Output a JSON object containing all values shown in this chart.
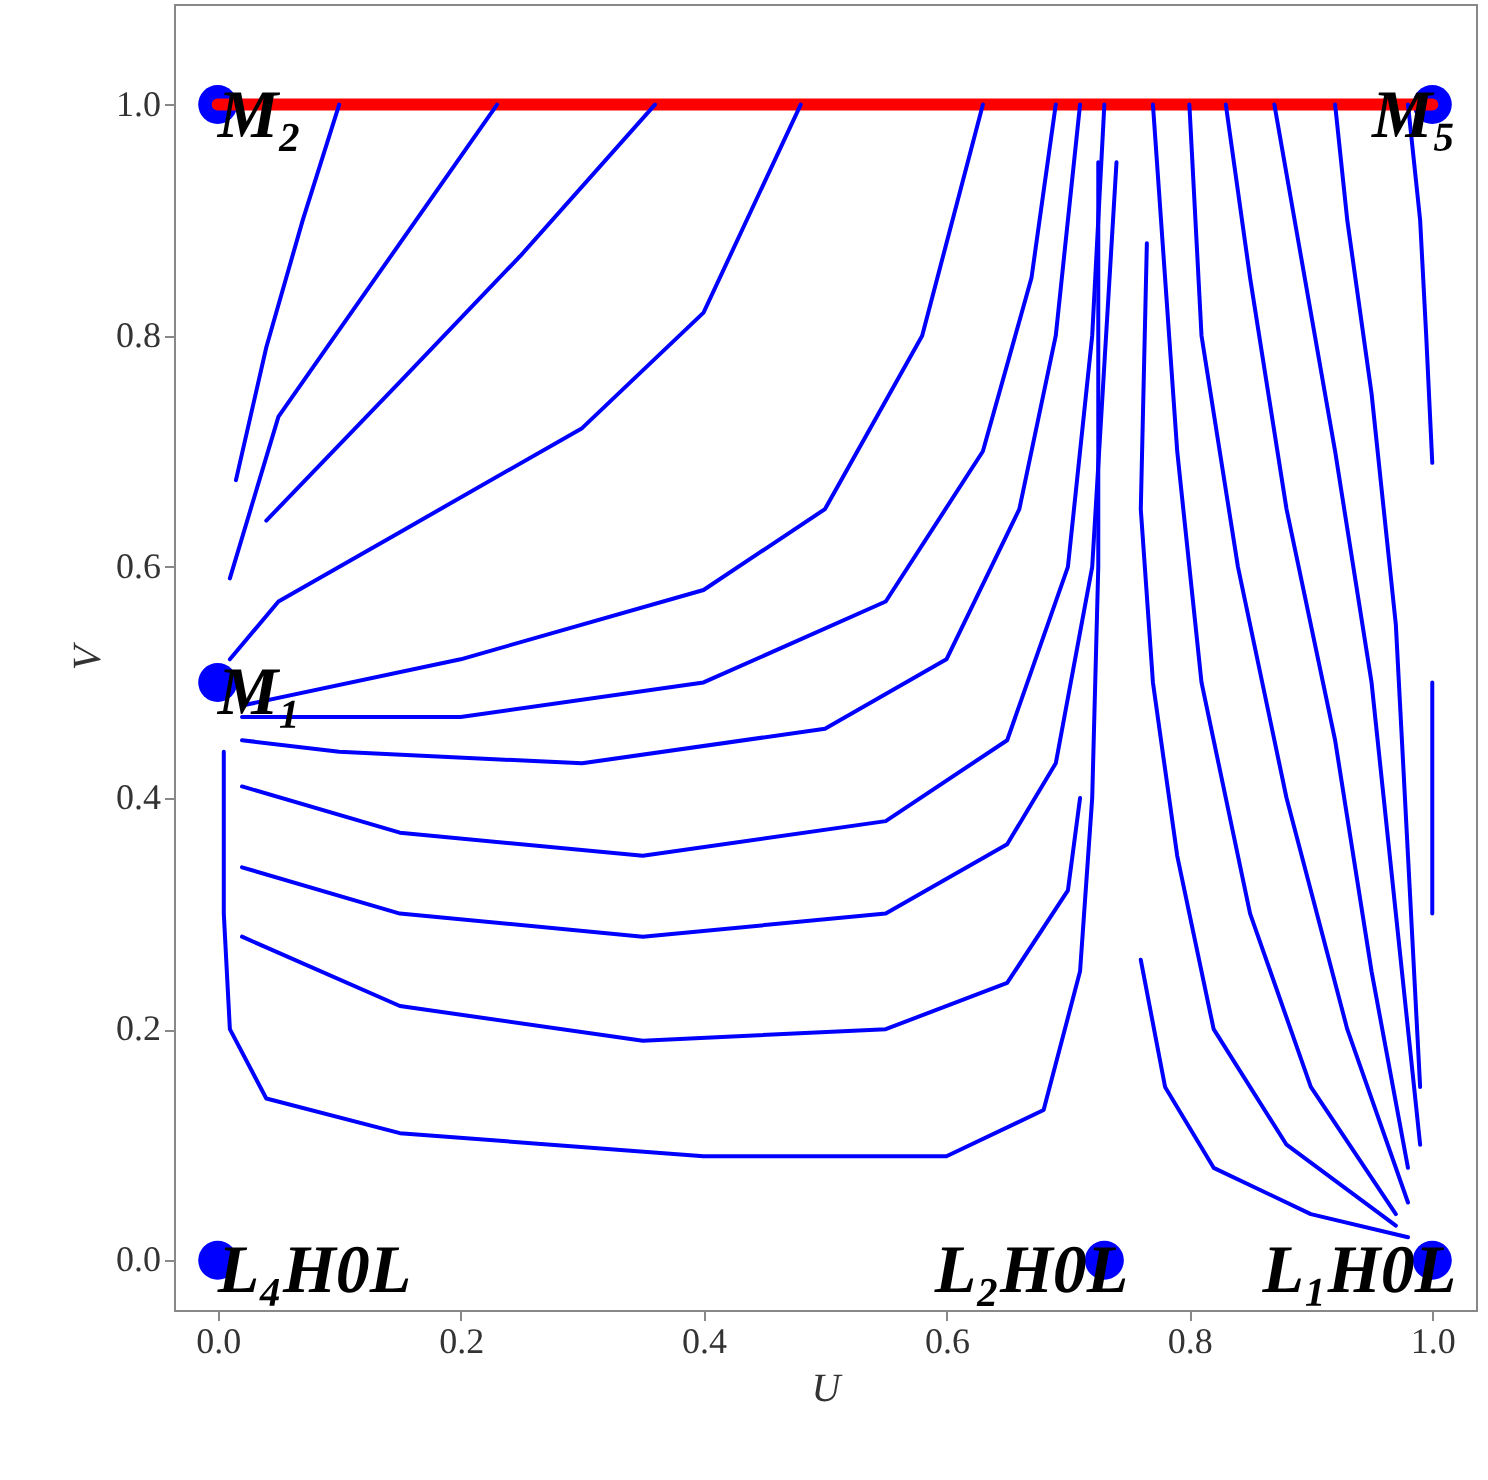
{
  "chart_data": {
    "type": "line",
    "xlabel": "U",
    "ylabel": "V",
    "xlim": [
      -0.036,
      1.036
    ],
    "ylim": [
      -0.043,
      1.087
    ],
    "xticks": [
      {
        "value": 0,
        "label": "0.0"
      },
      {
        "value": 0.2,
        "label": "0.2"
      },
      {
        "value": 0.4,
        "label": "0.4"
      },
      {
        "value": 0.6,
        "label": "0.6"
      },
      {
        "value": 0.8,
        "label": "0.8"
      },
      {
        "value": 1,
        "label": "1.0"
      }
    ],
    "yticks": [
      {
        "value": 0,
        "label": "0.0"
      },
      {
        "value": 0.2,
        "label": "0.2"
      },
      {
        "value": 0.4,
        "label": "0.4"
      },
      {
        "value": 0.6,
        "label": "0.6"
      },
      {
        "value": 0.8,
        "label": "0.8"
      },
      {
        "value": 1,
        "label": "1.0"
      }
    ],
    "grid": false,
    "line_style": "solid",
    "series": [
      {
        "color": "#ff0000",
        "x": [
          0,
          1
        ],
        "values": [
          1,
          1
        ]
      },
      {
        "color": "#0000ff",
        "x": [
          0.015,
          0.04,
          0.07,
          0.1
        ],
        "values": [
          0.675,
          0.79,
          0.9,
          1.0
        ]
      },
      {
        "color": "#0000ff",
        "x": [
          0.01,
          0.05,
          0.13,
          0.23
        ],
        "values": [
          0.59,
          0.73,
          0.85,
          1.0
        ]
      },
      {
        "color": "#0000ff",
        "x": [
          0.04,
          0.15,
          0.25,
          0.36
        ],
        "values": [
          0.64,
          0.76,
          0.87,
          1.0
        ]
      },
      {
        "color": "#0000ff",
        "x": [
          0.01,
          0.05,
          0.15,
          0.3,
          0.4,
          0.48
        ],
        "values": [
          0.52,
          0.57,
          0.63,
          0.72,
          0.82,
          1.0
        ]
      },
      {
        "color": "#0000ff",
        "x": [
          0.02,
          0.2,
          0.4,
          0.5,
          0.58,
          0.63
        ],
        "values": [
          0.48,
          0.52,
          0.58,
          0.65,
          0.8,
          1.0
        ]
      },
      {
        "color": "#0000ff",
        "x": [
          0.02,
          0.2,
          0.4,
          0.55,
          0.63,
          0.67,
          0.69
        ],
        "values": [
          0.47,
          0.47,
          0.5,
          0.57,
          0.7,
          0.85,
          1.0
        ]
      },
      {
        "color": "#0000ff",
        "x": [
          0.02,
          0.1,
          0.3,
          0.5,
          0.6,
          0.66,
          0.69,
          0.71
        ],
        "values": [
          0.45,
          0.44,
          0.43,
          0.46,
          0.52,
          0.65,
          0.8,
          1.0
        ]
      },
      {
        "color": "#0000ff",
        "x": [
          0.02,
          0.15,
          0.35,
          0.55,
          0.65,
          0.7,
          0.72,
          0.73
        ],
        "values": [
          0.41,
          0.37,
          0.35,
          0.38,
          0.45,
          0.6,
          0.8,
          1.0
        ]
      },
      {
        "color": "#0000ff",
        "x": [
          0.02,
          0.15,
          0.35,
          0.55,
          0.65,
          0.69,
          0.72,
          0.74
        ],
        "values": [
          0.34,
          0.3,
          0.28,
          0.3,
          0.36,
          0.43,
          0.6,
          0.95
        ]
      },
      {
        "color": "#0000ff",
        "x": [
          0.02,
          0.15,
          0.35,
          0.55,
          0.65,
          0.7,
          0.71
        ],
        "values": [
          0.28,
          0.22,
          0.19,
          0.2,
          0.24,
          0.32,
          0.4
        ]
      },
      {
        "color": "#0000ff",
        "x": [
          0.005,
          0.005,
          0.01,
          0.04,
          0.15,
          0.4,
          0.6,
          0.68,
          0.71,
          0.72,
          0.725,
          0.725,
          0.725
        ],
        "values": [
          0.44,
          0.3,
          0.2,
          0.14,
          0.11,
          0.09,
          0.09,
          0.13,
          0.25,
          0.4,
          0.6,
          0.8,
          0.95
        ]
      },
      {
        "color": "#0000ff",
        "x": [
          0.98,
          0.9,
          0.82,
          0.78,
          0.76
        ],
        "values": [
          0.02,
          0.04,
          0.08,
          0.15,
          0.26
        ]
      },
      {
        "color": "#0000ff",
        "x": [
          0.97,
          0.88,
          0.82,
          0.79,
          0.77,
          0.76,
          0.765
        ],
        "values": [
          0.03,
          0.1,
          0.2,
          0.35,
          0.5,
          0.65,
          0.88
        ]
      },
      {
        "color": "#0000ff",
        "x": [
          0.97,
          0.9,
          0.85,
          0.81,
          0.79,
          0.78,
          0.77
        ],
        "values": [
          0.04,
          0.15,
          0.3,
          0.5,
          0.7,
          0.85,
          1.0
        ]
      },
      {
        "color": "#0000ff",
        "x": [
          0.98,
          0.93,
          0.88,
          0.84,
          0.81,
          0.8
        ],
        "values": [
          0.05,
          0.2,
          0.4,
          0.6,
          0.8,
          1.0
        ]
      },
      {
        "color": "#0000ff",
        "x": [
          0.98,
          0.95,
          0.92,
          0.88,
          0.85,
          0.83
        ],
        "values": [
          0.08,
          0.25,
          0.45,
          0.65,
          0.85,
          1.0
        ]
      },
      {
        "color": "#0000ff",
        "x": [
          0.99,
          0.97,
          0.95,
          0.92,
          0.89,
          0.87
        ],
        "values": [
          0.1,
          0.3,
          0.5,
          0.7,
          0.88,
          1.0
        ]
      },
      {
        "color": "#0000ff",
        "x": [
          0.99,
          0.98,
          0.97,
          0.95,
          0.93,
          0.92
        ],
        "values": [
          0.15,
          0.35,
          0.55,
          0.75,
          0.9,
          1.0
        ]
      },
      {
        "color": "#0000ff",
        "x": [
          1.0,
          0.995,
          0.99,
          0.98
        ],
        "values": [
          0.69,
          0.8,
          0.9,
          1.0
        ]
      },
      {
        "color": "#0000ff",
        "x": [
          1.0,
          1.0,
          1.0
        ],
        "values": [
          0.3,
          0.4,
          0.5
        ]
      },
      {
        "type": "scatter",
        "color": "#0000ff",
        "marker": "circle",
        "x": [
          0,
          0.73,
          1,
          0,
          0,
          1
        ],
        "values": [
          0,
          0,
          0,
          0.5,
          1,
          1
        ]
      }
    ],
    "annotations": [
      {
        "text": "M₂",
        "x": 0,
        "y": 1
      },
      {
        "text": "M₅",
        "x": 1,
        "y": 1
      },
      {
        "text": "M₁",
        "x": 0,
        "y": 0.5
      },
      {
        "text": "L₄H0L",
        "x": 0,
        "y": 0
      },
      {
        "text": "L₂H0L",
        "x": 0.73,
        "y": 0
      },
      {
        "text": "L₁H0L",
        "x": 1,
        "y": 0
      }
    ]
  }
}
